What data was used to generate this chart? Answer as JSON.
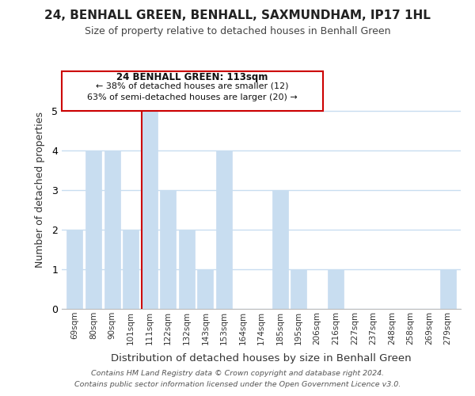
{
  "title": "24, BENHALL GREEN, BENHALL, SAXMUNDHAM, IP17 1HL",
  "subtitle": "Size of property relative to detached houses in Benhall Green",
  "xlabel": "Distribution of detached houses by size in Benhall Green",
  "ylabel": "Number of detached properties",
  "bar_labels": [
    "69sqm",
    "80sqm",
    "90sqm",
    "101sqm",
    "111sqm",
    "122sqm",
    "132sqm",
    "143sqm",
    "153sqm",
    "164sqm",
    "174sqm",
    "185sqm",
    "195sqm",
    "206sqm",
    "216sqm",
    "227sqm",
    "237sqm",
    "248sqm",
    "258sqm",
    "269sqm",
    "279sqm"
  ],
  "bar_values": [
    2,
    4,
    4,
    2,
    5,
    3,
    2,
    1,
    4,
    0,
    0,
    3,
    1,
    0,
    1,
    0,
    0,
    0,
    0,
    0,
    1
  ],
  "bar_color": "#c8ddf0",
  "highlight_index": 4,
  "highlight_edge_color": "#cc0000",
  "annotation_title": "24 BENHALL GREEN: 113sqm",
  "annotation_line1": "← 38% of detached houses are smaller (12)",
  "annotation_line2": "63% of semi-detached houses are larger (20) →",
  "annotation_box_edge_color": "#cc0000",
  "ylim": [
    0,
    6
  ],
  "yticks": [
    0,
    1,
    2,
    3,
    4,
    5,
    6
  ],
  "footer1": "Contains HM Land Registry data © Crown copyright and database right 2024.",
  "footer2": "Contains public sector information licensed under the Open Government Licence v3.0.",
  "background_color": "#ffffff",
  "grid_color": "#c8ddf0"
}
